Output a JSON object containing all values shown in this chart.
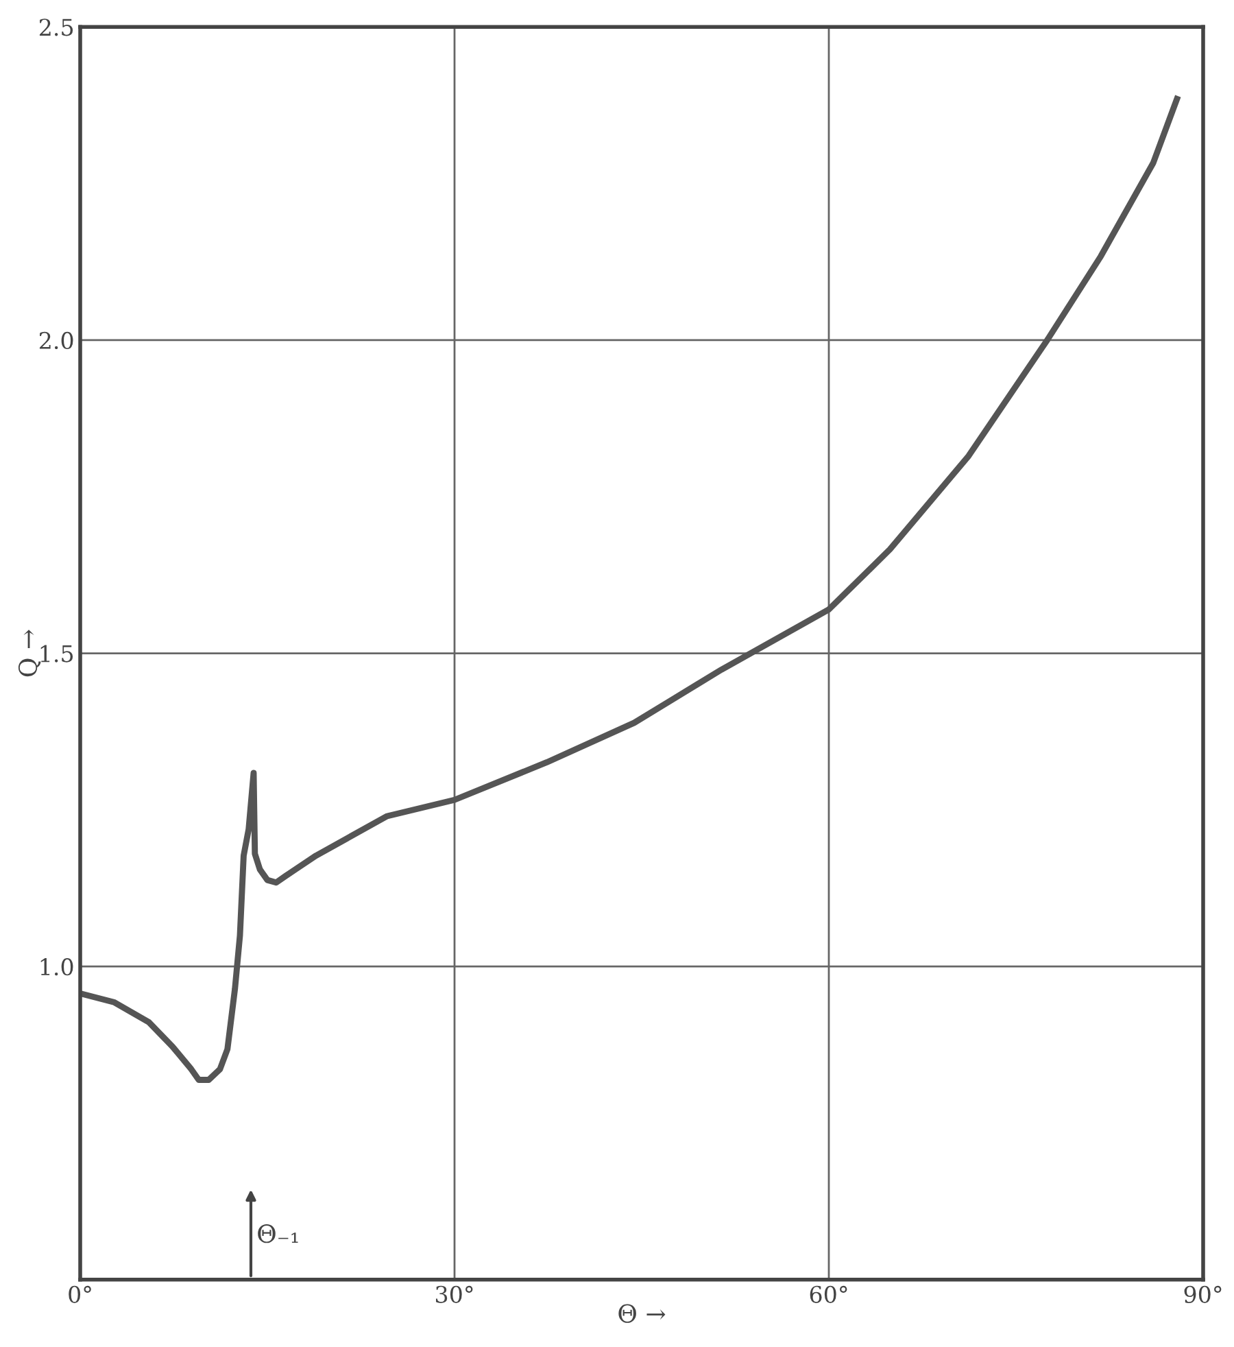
{
  "chart_data": {
    "type": "line",
    "xlabel": "Θ →",
    "ylabel": "Q →",
    "x": [
      0,
      2.7,
      5.5,
      7.4,
      8.9,
      9.5,
      10.3,
      11.2,
      11.8,
      12.4,
      12.8,
      13.1,
      13.5,
      13.9,
      14.0,
      14.4,
      15.0,
      15.7,
      16.5,
      18.9,
      24.6,
      30,
      37.4,
      44.4,
      51.4,
      60,
      64.9,
      71.2,
      77.5,
      81.8,
      86.0,
      87.9
    ],
    "series": [
      {
        "color": "#555555",
        "values": [
          0.957,
          0.943,
          0.911,
          0.872,
          0.836,
          0.819,
          0.819,
          0.836,
          0.868,
          0.964,
          1.049,
          1.177,
          1.219,
          1.309,
          1.18,
          1.155,
          1.138,
          1.134,
          1.145,
          1.177,
          1.24,
          1.266,
          1.326,
          1.389,
          1.474,
          1.57,
          1.666,
          1.815,
          2.0,
          2.134,
          2.283,
          2.385
        ]
      }
    ],
    "xlim": [
      0,
      90
    ],
    "xticks": [
      {
        "value": 0,
        "label": "0°"
      },
      {
        "value": 30,
        "label": "30°"
      },
      {
        "value": 60,
        "label": "60°"
      },
      {
        "value": 90,
        "label": "90°"
      }
    ],
    "ylim": [
      0.5,
      2.5
    ],
    "yticks": [
      {
        "value": 0.5,
        "label": null
      },
      {
        "value": 1.0,
        "label": "1.0"
      },
      {
        "value": 1.5,
        "label": "1.5"
      },
      {
        "value": 2.0,
        "label": "2.0"
      },
      {
        "value": 2.5,
        "label": "2.5"
      }
    ],
    "grid": true,
    "marker": "none",
    "line_style": "solid",
    "annotations": [
      "Θ₋₁"
    ]
  }
}
